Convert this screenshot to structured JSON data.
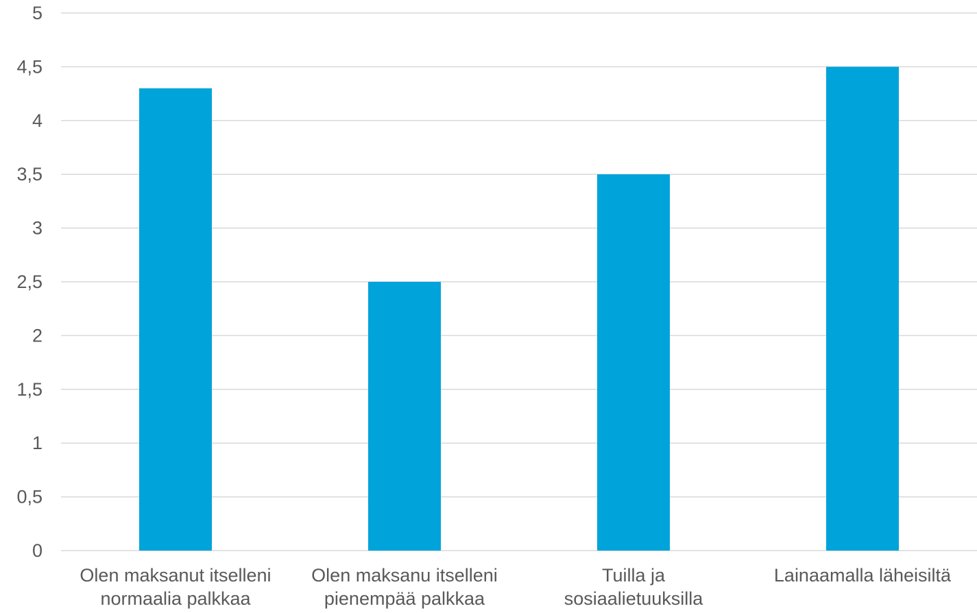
{
  "chart_data": {
    "type": "bar",
    "categories": [
      [
        "Olen maksanut itselleni",
        "normaalia palkkaa"
      ],
      [
        "Olen maksanu itselleni",
        "pienempää palkkaa"
      ],
      [
        "Tuilla ja",
        "sosiaalietuuksilla"
      ],
      [
        "Lainaamalla läheisiltä"
      ]
    ],
    "values": [
      4.3,
      2.5,
      3.5,
      4.5
    ],
    "ylim": [
      0,
      5
    ],
    "yticks": [
      "0",
      "0,5",
      "1",
      "1,5",
      "2",
      "2,5",
      "3",
      "3,5",
      "4",
      "4,5",
      "5"
    ],
    "grid": true,
    "legend": "none",
    "colors": {
      "bar": "#00A3DA",
      "grid": "#D9D9D9",
      "text": "#595959"
    }
  }
}
